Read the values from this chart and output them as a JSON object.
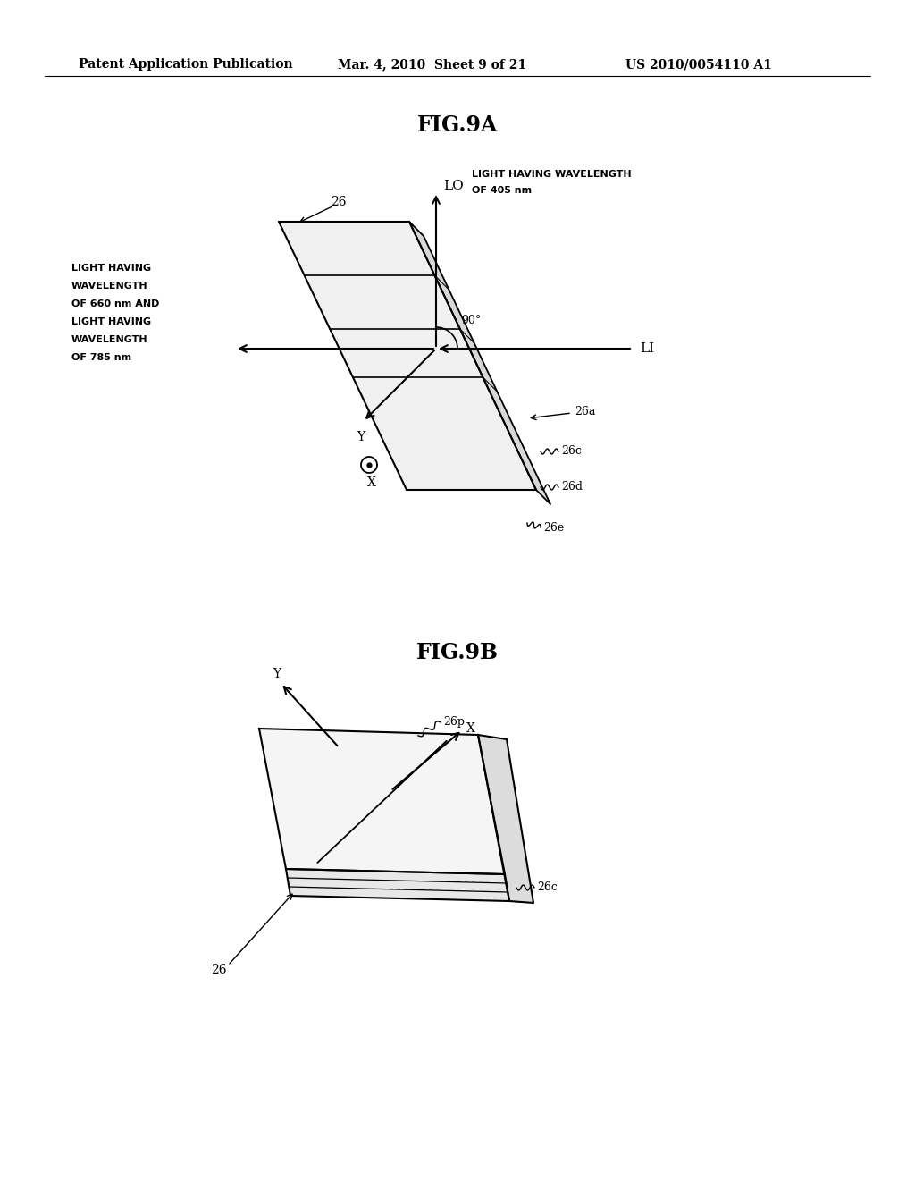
{
  "bg_color": "#ffffff",
  "header_text": "Patent Application Publication",
  "header_date": "Mar. 4, 2010  Sheet 9 of 21",
  "header_patent": "US 2010/0054110 A1",
  "fig9a_title": "FIG.9A",
  "fig9b_title": "FIG.9B",
  "line_color": "#000000",
  "text_color": "#000000",
  "font_size_header": 10,
  "font_size_title": 17,
  "font_size_label": 9,
  "font_size_small": 8
}
